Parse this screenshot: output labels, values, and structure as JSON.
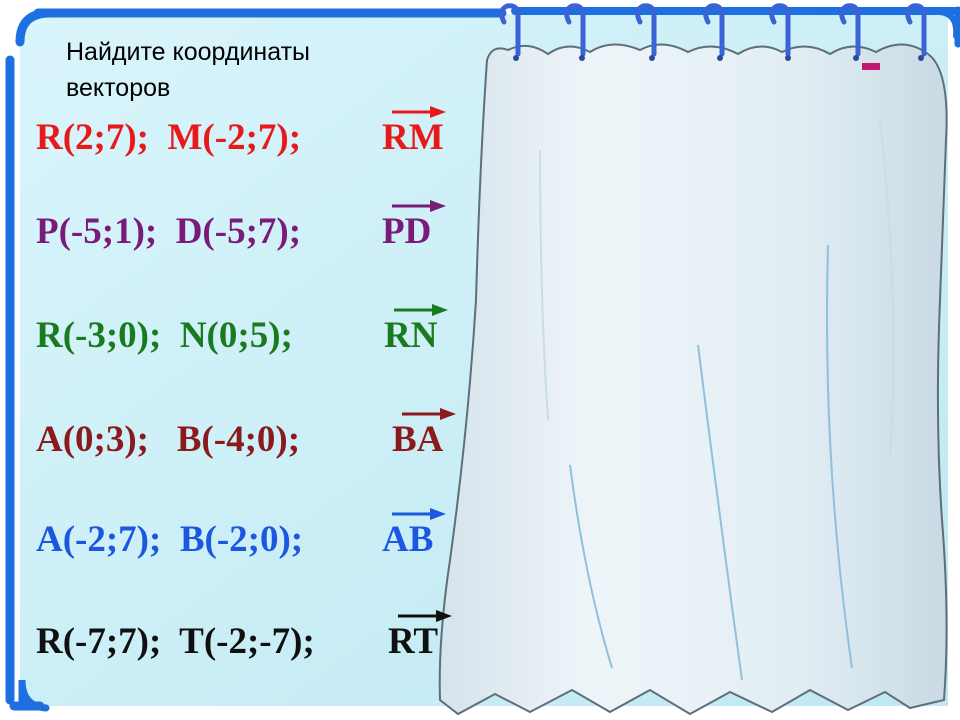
{
  "title": {
    "line1": "Найдите координаты",
    "line2": "векторов"
  },
  "colors": {
    "frame": "#1e6fe0",
    "background": "#c9eef7",
    "curtain": "#e4eff5"
  },
  "rows": [
    {
      "points": "R(2;7);  M(-2;7);",
      "vector": "RM",
      "color": "#e8191b"
    },
    {
      "points": "P(-5;1);  D(-5;7);",
      "vector": "PD",
      "color": "#7a1a79"
    },
    {
      "points": "R(-3;0);  N(0;5);",
      "vector": "RN",
      "color": "#1a7a1f"
    },
    {
      "points": "A(0;3);   B(-4;0);",
      "vector": "BA",
      "color": "#8a1a1c"
    },
    {
      "points": "A(-2;7);  B(-2;0);",
      "vector": "AB",
      "color": "#1b57e0"
    },
    {
      "points": "R(-7;7);  T(-2;-7);",
      "vector": "RT",
      "color": "#101010"
    }
  ]
}
